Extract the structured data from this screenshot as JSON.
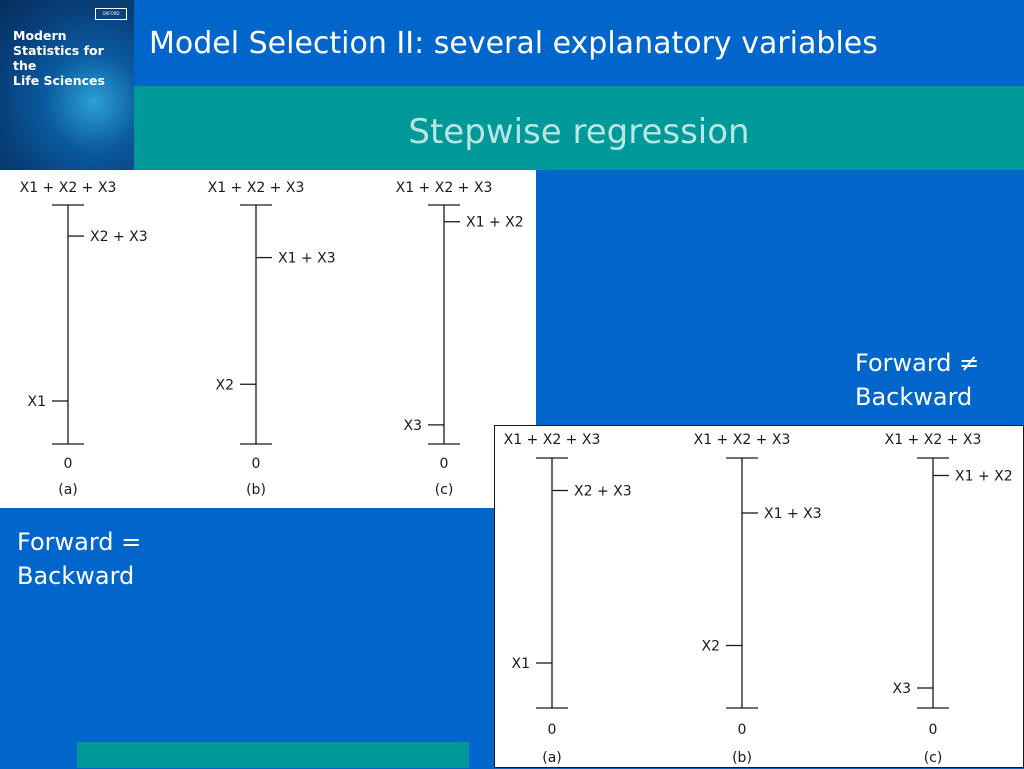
{
  "book": {
    "publisher": "OXFORD",
    "title_lines": [
      "Modern",
      "Statistics for the",
      "Life Sciences"
    ]
  },
  "slide": {
    "title": "Model Selection II: several explanatory variables",
    "subtitle": "Stepwise regression"
  },
  "labels": {
    "forward_eq_line1": "Forward =",
    "forward_eq_line2": "Backward",
    "forward_neq_line1": "Forward ≠",
    "forward_neq_line2": "Backward"
  },
  "colors": {
    "background": "#0066cc",
    "teal": "#009999",
    "subtitle_text": "#b8e6e3"
  },
  "diagram": {
    "top_label": "X1 + X2 + X3",
    "zero_label": "0",
    "panels": [
      {
        "caption": "(a)",
        "steps": [
          {
            "label": "X2 + X3",
            "side": "right",
            "level": 0.87
          },
          {
            "label": "X1",
            "side": "left",
            "level": 0.18
          }
        ]
      },
      {
        "caption": "(b)",
        "steps": [
          {
            "label": "X1 + X3",
            "side": "right",
            "level": 0.78
          },
          {
            "label": "X2",
            "side": "left",
            "level": 0.25
          }
        ]
      },
      {
        "caption": "(c)",
        "steps": [
          {
            "label": "X1 + X2",
            "side": "right",
            "level": 0.93
          },
          {
            "label": "X3",
            "side": "left",
            "level": 0.08
          }
        ]
      }
    ]
  }
}
